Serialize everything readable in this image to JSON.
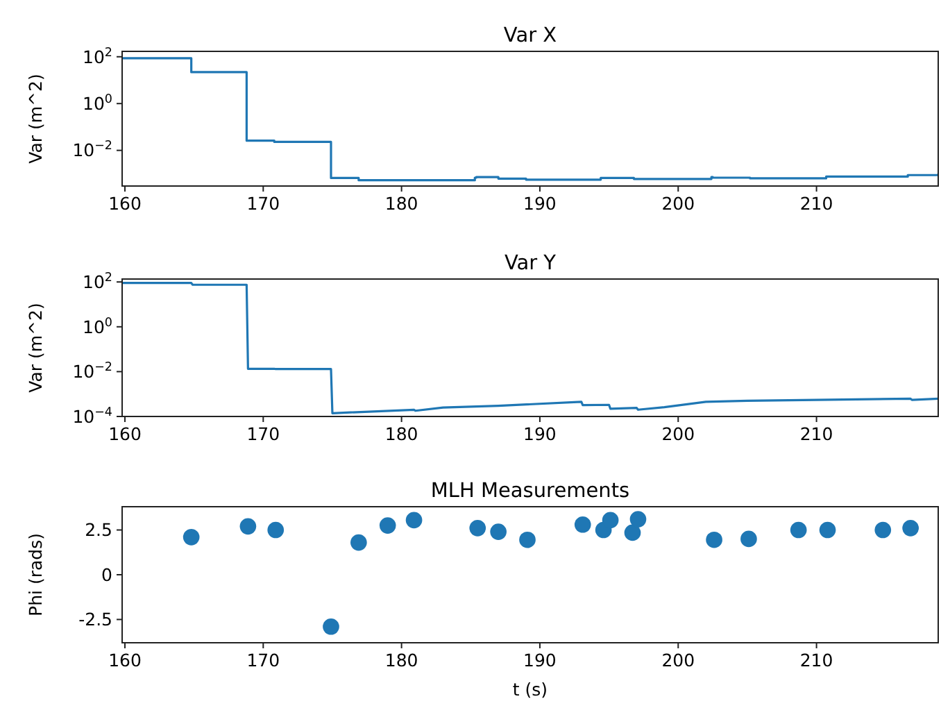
{
  "chart_data": [
    {
      "type": "step",
      "title": "Var X",
      "ylabel": "Var (m^2)",
      "log": "y",
      "xlim": [
        159.8,
        218.8
      ],
      "xticks": [
        160,
        170,
        180,
        190,
        200,
        210
      ],
      "ylim": [
        0.0003,
        170
      ],
      "yticks": [
        {
          "value": 100,
          "label": "10$^{2}$"
        },
        {
          "value": 1,
          "label": "10$^{0}$"
        },
        {
          "value": 0.01,
          "label": "10$^{−2}$"
        }
      ],
      "grid": false,
      "line_style": "solid",
      "series": [
        {
          "color": "#1f77b4",
          "x": [
            159.8,
            164.8,
            168.8,
            170.8,
            174.9,
            176.9,
            185.3,
            185.4,
            187,
            189,
            194.4,
            196.8,
            202.4,
            202.5,
            205.2,
            210.7,
            216.6,
            218.8
          ],
          "values": [
            87,
            22,
            0.026,
            0.023,
            0.00066,
            0.00053,
            0.00068,
            0.00072,
            0.00062,
            0.00056,
            0.00066,
            0.0006,
            0.00072,
            0.00068,
            0.00064,
            0.00076,
            0.00088,
            0.001
          ]
        }
      ]
    },
    {
      "type": "line",
      "title": "Var Y",
      "ylabel": "Var (m^2)",
      "log": "y",
      "xlim": [
        159.8,
        218.8
      ],
      "xticks": [
        160,
        170,
        180,
        190,
        200,
        210
      ],
      "ylim": [
        0.0001,
        135
      ],
      "yticks": [
        {
          "value": 100,
          "label": "10$^{2}$"
        },
        {
          "value": 1,
          "label": "10$^{0}$"
        },
        {
          "value": 0.01,
          "label": "10$^{−2}$"
        },
        {
          "value": 0.0001,
          "label": "10$^{−4}$"
        }
      ],
      "grid": false,
      "line_style": "solid",
      "series": [
        {
          "color": "#1f77b4",
          "x": [
            159.8,
            164.8,
            164.9,
            168.8,
            168.9,
            170.8,
            170.9,
            174.9,
            175,
            180.9,
            181,
            183,
            187,
            193,
            193.1,
            195,
            195.1,
            197,
            197.1,
            199,
            202,
            205,
            210,
            216.8,
            216.9,
            218.8
          ],
          "values": [
            90,
            90,
            75,
            75,
            0.0134,
            0.0134,
            0.013,
            0.013,
            0.00014,
            0.0002,
            0.00018,
            0.00025,
            0.0003,
            0.00045,
            0.00032,
            0.00033,
            0.00022,
            0.00024,
            0.0002,
            0.00026,
            0.00045,
            0.0005,
            0.00055,
            0.00062,
            0.00055,
            0.00062
          ]
        }
      ]
    },
    {
      "type": "scatter",
      "title": "MLH Measurements",
      "ylabel": "Phi (rads)",
      "xlabel": "t (s)",
      "xlim": [
        159.8,
        218.8
      ],
      "xticks": [
        160,
        170,
        180,
        190,
        200,
        210
      ],
      "ylim": [
        -3.8,
        3.8
      ],
      "yticks": [
        -2.5,
        0,
        2.5
      ],
      "grid": false,
      "marker": "circle",
      "series": [
        {
          "color": "#1f77b4",
          "x": [
            164.8,
            168.9,
            170.9,
            174.9,
            176.9,
            179,
            180.9,
            185.5,
            187,
            189.1,
            193.1,
            194.6,
            195.1,
            196.7,
            197.1,
            202.6,
            205.1,
            208.7,
            210.8,
            214.8,
            216.8
          ],
          "values": [
            2.1,
            2.7,
            2.5,
            -2.9,
            1.8,
            2.75,
            3.05,
            2.6,
            2.4,
            1.95,
            2.8,
            2.5,
            3.05,
            2.35,
            3.1,
            1.95,
            2.0,
            2.5,
            2.5,
            2.5,
            2.6
          ]
        }
      ]
    }
  ]
}
